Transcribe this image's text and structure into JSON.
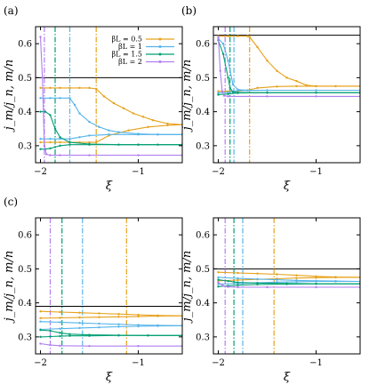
{
  "colors": {
    "b05": "#e6a11a",
    "b1": "#56b4e9",
    "b15": "#009e73",
    "b2": "#b07ef0",
    "ref": "#000000"
  },
  "legend": {
    "entries": [
      {
        "label": "βL = 0.5",
        "color": "#e6a11a"
      },
      {
        "label": "βL = 1",
        "color": "#56b4e9"
      },
      {
        "label": "βL = 1.5",
        "color": "#009e73"
      },
      {
        "label": "βL = 2",
        "color": "#b07ef0"
      }
    ]
  },
  "chart_data": [
    {
      "type": "line",
      "panel_label": "(a)",
      "xlabel": "ξ",
      "ylabel": "j_m/j_n, m/n",
      "xlim": [
        -2.05,
        -0.55
      ],
      "ylim": [
        0.25,
        0.65
      ],
      "xticks": [
        "−2",
        "−1"
      ],
      "yticks": [
        "0.3",
        "0.4",
        "0.5",
        "0.6"
      ],
      "reference_lines": [
        0.5
      ],
      "vlines": [
        {
          "x": -1.43,
          "color": "b05"
        },
        {
          "x": -1.7,
          "color": "b1"
        },
        {
          "x": -1.85,
          "color": "b15"
        },
        {
          "x": -1.96,
          "color": "b2"
        }
      ],
      "series": [
        {
          "color": "b05",
          "x": [
            -2.0,
            -1.9,
            -1.8,
            -1.7,
            -1.6,
            -1.5,
            -1.43,
            -1.35,
            -1.25,
            -1.15,
            -1.05,
            -0.95,
            -0.85,
            -0.7,
            -0.55
          ],
          "y": [
            0.47,
            0.47,
            0.47,
            0.47,
            0.47,
            0.47,
            0.467,
            0.445,
            0.425,
            0.41,
            0.395,
            0.385,
            0.375,
            0.365,
            0.362
          ]
        },
        {
          "color": "b05",
          "x": [
            -2.0,
            -1.9,
            -1.8,
            -1.7,
            -1.6,
            -1.5,
            -1.43,
            -1.3,
            -1.1,
            -0.9,
            -0.7,
            -0.55
          ],
          "y": [
            0.31,
            0.31,
            0.31,
            0.31,
            0.31,
            0.31,
            0.31,
            0.33,
            0.345,
            0.355,
            0.36,
            0.362
          ]
        },
        {
          "color": "b1",
          "x": [
            -2.0,
            -1.9,
            -1.8,
            -1.7,
            -1.65,
            -1.6,
            -1.5,
            -1.4,
            -1.3,
            -1.2,
            -1.0,
            -0.8,
            -0.55
          ],
          "y": [
            0.44,
            0.44,
            0.44,
            0.44,
            0.42,
            0.395,
            0.37,
            0.355,
            0.345,
            0.34,
            0.335,
            0.333,
            0.333
          ]
        },
        {
          "color": "b1",
          "x": [
            -2.0,
            -1.9,
            -1.8,
            -1.7,
            -1.6,
            -1.5,
            -1.3,
            -1.0,
            -0.8,
            -0.55
          ],
          "y": [
            0.32,
            0.32,
            0.32,
            0.32,
            0.325,
            0.33,
            0.333,
            0.333,
            0.333,
            0.333
          ]
        },
        {
          "color": "b15",
          "x": [
            -2.0,
            -1.95,
            -1.9,
            -1.85,
            -1.8,
            -1.7,
            -1.5,
            -1.2,
            -1.0,
            -0.8,
            -0.55
          ],
          "y": [
            0.4,
            0.4,
            0.39,
            0.35,
            0.325,
            0.31,
            0.305,
            0.303,
            0.303,
            0.303,
            0.303
          ]
        },
        {
          "color": "b15",
          "x": [
            -2.0,
            -1.95,
            -1.9,
            -1.85,
            -1.8,
            -1.7,
            -1.5,
            -1.0,
            -0.55
          ],
          "y": [
            0.29,
            0.29,
            0.292,
            0.296,
            0.3,
            0.303,
            0.303,
            0.303,
            0.303
          ]
        },
        {
          "color": "b2",
          "x": [
            -2.0,
            -1.98,
            -1.96,
            -1.94,
            -1.9,
            -1.8,
            -1.5,
            -1.0,
            -0.55
          ],
          "y": [
            0.62,
            0.5,
            0.3,
            0.275,
            0.272,
            0.272,
            0.272,
            0.272,
            0.272
          ]
        }
      ]
    },
    {
      "type": "line",
      "panel_label": "(b)",
      "xlabel": "ξ",
      "ylabel": "j_m/j_n, m/n",
      "xlim": [
        -2.05,
        -0.55
      ],
      "ylim": [
        0.25,
        0.65
      ],
      "xticks": [
        "−2",
        "−1"
      ],
      "yticks": [
        "0.3",
        "0.4",
        "0.5",
        "0.6"
      ],
      "reference_lines": [
        0.625
      ],
      "vlines": [
        {
          "x": -1.68,
          "color": "b05"
        },
        {
          "x": -1.84,
          "color": "b1"
        },
        {
          "x": -1.88,
          "color": "b15"
        },
        {
          "x": -1.93,
          "color": "b2"
        }
      ],
      "series": [
        {
          "color": "b05",
          "x": [
            -2.0,
            -1.9,
            -1.8,
            -1.7,
            -1.68,
            -1.6,
            -1.5,
            -1.4,
            -1.3,
            -1.2,
            -1.1,
            -1.0,
            -0.8,
            -0.55
          ],
          "y": [
            0.622,
            0.622,
            0.622,
            0.622,
            0.62,
            0.59,
            0.55,
            0.52,
            0.5,
            0.49,
            0.478,
            0.475,
            0.475,
            0.475
          ]
        },
        {
          "color": "b05",
          "x": [
            -2.0,
            -1.9,
            -1.8,
            -1.7,
            -1.6,
            -1.4,
            -1.2,
            -1.0,
            -0.55
          ],
          "y": [
            0.46,
            0.46,
            0.46,
            0.463,
            0.47,
            0.474,
            0.475,
            0.475,
            0.475
          ]
        },
        {
          "color": "b1",
          "x": [
            -2.0,
            -1.95,
            -1.9,
            -1.85,
            -1.8,
            -1.7,
            -1.5,
            -1.0,
            -0.55
          ],
          "y": [
            0.615,
            0.6,
            0.55,
            0.48,
            0.465,
            0.463,
            0.463,
            0.463,
            0.463
          ]
        },
        {
          "color": "b1",
          "x": [
            -2.0,
            -1.9,
            -1.84,
            -1.8,
            -1.5,
            -1.0,
            -0.55
          ],
          "y": [
            0.455,
            0.457,
            0.46,
            0.462,
            0.463,
            0.463,
            0.463
          ]
        },
        {
          "color": "b15",
          "x": [
            -2.0,
            -1.95,
            -1.9,
            -1.88,
            -1.85,
            -1.8,
            -1.5,
            -1.0,
            -0.55
          ],
          "y": [
            0.61,
            0.57,
            0.5,
            0.47,
            0.458,
            0.456,
            0.456,
            0.456,
            0.456
          ]
        },
        {
          "color": "b15",
          "x": [
            -2.0,
            -1.9,
            -1.8,
            -1.5,
            -1.0,
            -0.55
          ],
          "y": [
            0.45,
            0.452,
            0.455,
            0.456,
            0.456,
            0.456
          ]
        },
        {
          "color": "b2",
          "x": [
            -2.0,
            -1.98,
            -1.96,
            -1.94,
            -1.9,
            -1.5,
            -1.0,
            -0.55
          ],
          "y": [
            0.62,
            0.52,
            0.46,
            0.447,
            0.445,
            0.445,
            0.445,
            0.445
          ]
        }
      ]
    },
    {
      "type": "line",
      "panel_label": "(c)",
      "xlabel": "ξ",
      "ylabel": "j_m/j_n, m/n",
      "xlim": [
        -2.05,
        -0.55
      ],
      "ylim": [
        0.25,
        0.65
      ],
      "xticks": [
        "−2",
        "−1"
      ],
      "yticks": [
        "0.3",
        "0.4",
        "0.5",
        "0.6"
      ],
      "reference_lines": [
        0.39
      ],
      "vlines": [
        {
          "x": -1.12,
          "color": "b05"
        },
        {
          "x": -1.57,
          "color": "b1"
        },
        {
          "x": -1.78,
          "color": "b15"
        },
        {
          "x": -1.9,
          "color": "b2"
        }
      ],
      "series": [
        {
          "color": "b05",
          "x": [
            -2.0,
            -1.8,
            -1.6,
            -1.4,
            -1.2,
            -1.0,
            -0.8,
            -0.55
          ],
          "y": [
            0.375,
            0.373,
            0.371,
            0.369,
            0.367,
            0.365,
            0.363,
            0.362
          ]
        },
        {
          "color": "b05",
          "x": [
            -2.0,
            -1.8,
            -1.6,
            -1.4,
            -1.2,
            -1.0,
            -0.8,
            -0.55
          ],
          "y": [
            0.355,
            0.356,
            0.357,
            0.358,
            0.359,
            0.36,
            0.361,
            0.362
          ]
        },
        {
          "color": "b1",
          "x": [
            -2.0,
            -1.8,
            -1.6,
            -1.4,
            -1.2,
            -1.0,
            -0.8,
            -0.55
          ],
          "y": [
            0.345,
            0.343,
            0.341,
            0.339,
            0.337,
            0.335,
            0.334,
            0.333
          ]
        },
        {
          "color": "b1",
          "x": [
            -2.0,
            -1.8,
            -1.6,
            -1.4,
            -1.2,
            -1.0,
            -0.8,
            -0.55
          ],
          "y": [
            0.322,
            0.324,
            0.326,
            0.328,
            0.33,
            0.331,
            0.332,
            0.333
          ]
        },
        {
          "color": "b15",
          "x": [
            -2.0,
            -1.9,
            -1.8,
            -1.7,
            -1.5,
            -1.2,
            -0.9,
            -0.55
          ],
          "y": [
            0.32,
            0.318,
            0.312,
            0.308,
            0.306,
            0.305,
            0.304,
            0.304
          ]
        },
        {
          "color": "b15",
          "x": [
            -2.0,
            -1.9,
            -1.8,
            -1.7,
            -1.5,
            -1.2,
            -0.9,
            -0.55
          ],
          "y": [
            0.3,
            0.301,
            0.302,
            0.303,
            0.303,
            0.304,
            0.304,
            0.304
          ]
        },
        {
          "color": "b2",
          "x": [
            -2.0,
            -1.9,
            -1.8,
            -1.5,
            -1.0,
            -0.55
          ],
          "y": [
            0.28,
            0.276,
            0.274,
            0.273,
            0.273,
            0.273
          ]
        }
      ]
    },
    {
      "type": "line",
      "panel_label": "",
      "xlabel": "ξ",
      "ylabel": "j_m/j_n, m/n",
      "xlim": [
        -2.05,
        -0.55
      ],
      "ylim": [
        0.25,
        0.65
      ],
      "xticks": [
        "−2",
        "−1"
      ],
      "yticks": [
        "0.3",
        "0.4",
        "0.5",
        "0.6"
      ],
      "reference_lines": [
        0.5
      ],
      "vlines": [
        {
          "x": -1.43,
          "color": "b05"
        },
        {
          "x": -1.75,
          "color": "b1"
        },
        {
          "x": -1.84,
          "color": "b15"
        },
        {
          "x": -1.93,
          "color": "b2"
        }
      ],
      "series": [
        {
          "color": "b05",
          "x": [
            -2.0,
            -1.8,
            -1.6,
            -1.4,
            -1.2,
            -1.0,
            -0.8,
            -0.55
          ],
          "y": [
            0.49,
            0.488,
            0.486,
            0.484,
            0.481,
            0.478,
            0.476,
            0.475
          ]
        },
        {
          "color": "b05",
          "x": [
            -2.0,
            -1.8,
            -1.6,
            -1.4,
            -1.2,
            -1.0,
            -0.8,
            -0.55
          ],
          "y": [
            0.465,
            0.467,
            0.469,
            0.471,
            0.473,
            0.474,
            0.475,
            0.475
          ]
        },
        {
          "color": "b1",
          "x": [
            -2.0,
            -1.8,
            -1.6,
            -1.4,
            -1.2,
            -1.0,
            -0.8,
            -0.55
          ],
          "y": [
            0.475,
            0.472,
            0.47,
            0.468,
            0.466,
            0.465,
            0.464,
            0.463
          ]
        },
        {
          "color": "b1",
          "x": [
            -2.0,
            -1.8,
            -1.6,
            -1.4,
            -1.2,
            -1.0,
            -0.8,
            -0.55
          ],
          "y": [
            0.455,
            0.457,
            0.459,
            0.461,
            0.462,
            0.463,
            0.463,
            0.463
          ]
        },
        {
          "color": "b15",
          "x": [
            -2.0,
            -1.9,
            -1.8,
            -1.6,
            -1.3,
            -1.0,
            -0.55
          ],
          "y": [
            0.468,
            0.464,
            0.46,
            0.458,
            0.457,
            0.456,
            0.456
          ]
        },
        {
          "color": "b15",
          "x": [
            -2.0,
            -1.9,
            -1.8,
            -1.6,
            -1.3,
            -1.0,
            -0.55
          ],
          "y": [
            0.448,
            0.45,
            0.452,
            0.454,
            0.455,
            0.456,
            0.456
          ]
        },
        {
          "color": "b2",
          "x": [
            -2.0,
            -1.95,
            -1.9,
            -1.8,
            -1.5,
            -1.0,
            -0.55
          ],
          "y": [
            0.46,
            0.45,
            0.447,
            0.446,
            0.446,
            0.446,
            0.446
          ]
        }
      ]
    }
  ]
}
